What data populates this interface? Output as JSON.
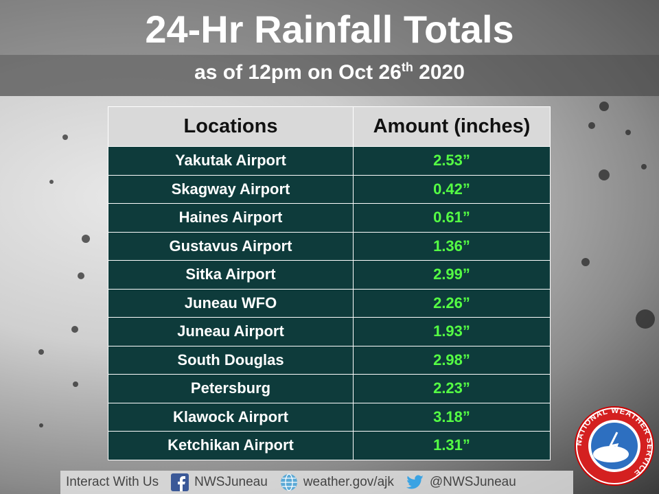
{
  "header": {
    "title": "24-Hr Rainfall Totals",
    "subtitle_parts": [
      "as of 12pm on Oct 26",
      "th",
      "2020"
    ]
  },
  "table": {
    "columns": [
      "Locations",
      "Amount (inches)"
    ],
    "rows": [
      [
        "Yakutak Airport",
        "2.53”"
      ],
      [
        "Skagway Airport",
        "0.42”"
      ],
      [
        "Haines Airport",
        "0.61”"
      ],
      [
        "Gustavus Airport",
        "1.36”"
      ],
      [
        "Sitka Airport",
        "2.99”"
      ],
      [
        "Juneau WFO",
        "2.26”"
      ],
      [
        "Juneau Airport",
        "1.93”"
      ],
      [
        "South Douglas",
        "2.98”"
      ],
      [
        "Petersburg",
        "2.23”"
      ],
      [
        "Klawock Airport",
        "3.18”"
      ],
      [
        "Ketchikan Airport",
        "1.31”"
      ]
    ]
  },
  "footer": {
    "intro": "Interact With Us",
    "facebook": "NWSJuneau",
    "website": "weather.gov/ajk",
    "twitter": "@NWSJuneau"
  },
  "logo": {
    "text": "NATIONAL WEATHER SERVICE"
  }
}
